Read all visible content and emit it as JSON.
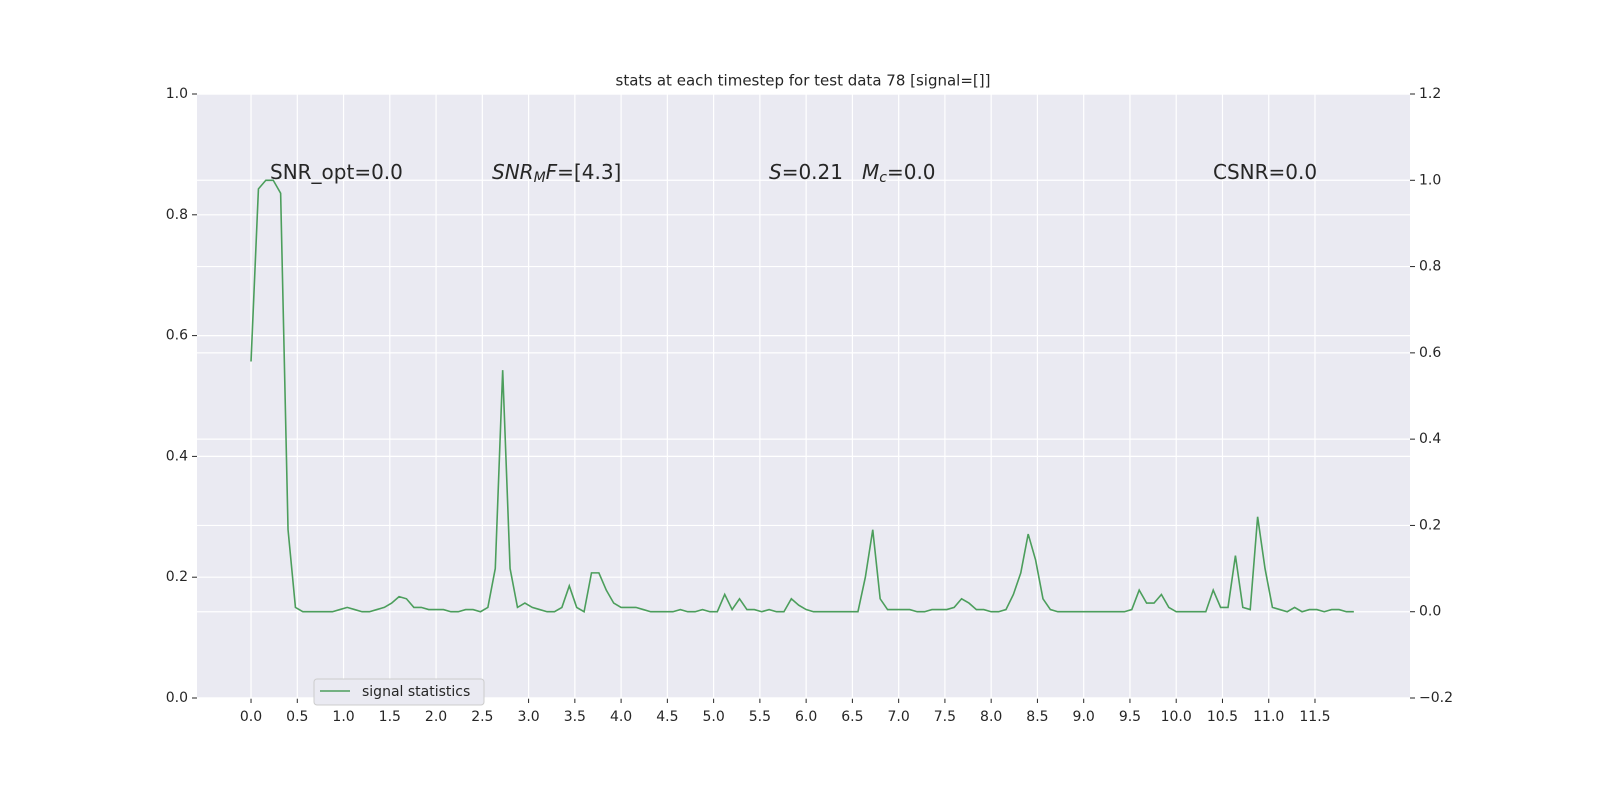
{
  "chart_data": {
    "type": "line",
    "title": "stats at each timestep for test data 78 [signal=[]]",
    "x": [
      0,
      0.08,
      0.16,
      0.24,
      0.32,
      0.4,
      0.48,
      0.56,
      0.64,
      0.72,
      0.8,
      0.88,
      0.96,
      1.04,
      1.12,
      1.2,
      1.28,
      1.36,
      1.44,
      1.52,
      1.6,
      1.68,
      1.76,
      1.84,
      1.92,
      2,
      2.08,
      2.16,
      2.24,
      2.32,
      2.4,
      2.48,
      2.56,
      2.64,
      2.72,
      2.8,
      2.88,
      2.96,
      3.04,
      3.12,
      3.2,
      3.28,
      3.36,
      3.44,
      3.52,
      3.6,
      3.68,
      3.76,
      3.84,
      3.92,
      4,
      4.08,
      4.16,
      4.24,
      4.32,
      4.4,
      4.48,
      4.56,
      4.64,
      4.72,
      4.8,
      4.88,
      4.96,
      5.04,
      5.12,
      5.2,
      5.28,
      5.36,
      5.44,
      5.52,
      5.6,
      5.68,
      5.76,
      5.84,
      5.92,
      6,
      6.08,
      6.16,
      6.24,
      6.32,
      6.4,
      6.48,
      6.56,
      6.64,
      6.72,
      6.8,
      6.88,
      6.96,
      7.04,
      7.12,
      7.2,
      7.28,
      7.36,
      7.44,
      7.52,
      7.6,
      7.68,
      7.76,
      7.84,
      7.92,
      8,
      8.08,
      8.16,
      8.24,
      8.32,
      8.4,
      8.48,
      8.56,
      8.64,
      8.72,
      8.8,
      8.88,
      8.96,
      9.04,
      9.12,
      9.2,
      9.28,
      9.36,
      9.44,
      9.52,
      9.6,
      9.68,
      9.76,
      9.84,
      9.92,
      10,
      10.08,
      10.16,
      10.24,
      10.32,
      10.4,
      10.48,
      10.56,
      10.64,
      10.72,
      10.8,
      10.88,
      10.96,
      11.04,
      11.12,
      11.2,
      11.28,
      11.36,
      11.44,
      11.52,
      11.6,
      11.68,
      11.76,
      11.84,
      11.92
    ],
    "series": [
      {
        "name": "signal statistics",
        "color": "#4c9e5c",
        "axis": "y2",
        "values": [
          0.58,
          0.98,
          1.0,
          1.0,
          0.97,
          0.19,
          0.01,
          0,
          0,
          0,
          0,
          0,
          0.005,
          0.01,
          0.005,
          0,
          0,
          0.005,
          0.01,
          0.02,
          0.035,
          0.03,
          0.01,
          0.01,
          0.005,
          0.005,
          0.005,
          0,
          0,
          0.005,
          0.005,
          0,
          0.01,
          0.1,
          0.56,
          0.1,
          0.01,
          0.02,
          0.01,
          0.005,
          0,
          0,
          0.01,
          0.06,
          0.01,
          0,
          0.09,
          0.09,
          0.05,
          0.02,
          0.01,
          0.01,
          0.01,
          0.005,
          0,
          0,
          0,
          0,
          0.005,
          0,
          0,
          0.005,
          0,
          0,
          0.04,
          0.005,
          0.03,
          0.005,
          0.005,
          0,
          0.005,
          0,
          0,
          0.03,
          0.015,
          0.005,
          0,
          0,
          0,
          0,
          0,
          0,
          0,
          0.08,
          0.19,
          0.03,
          0.005,
          0.005,
          0.005,
          0.005,
          0,
          0,
          0.005,
          0.005,
          0.005,
          0.01,
          0.03,
          0.02,
          0.005,
          0.005,
          0,
          0,
          0.005,
          0.04,
          0.09,
          0.18,
          0.12,
          0.03,
          0.005,
          0,
          0,
          0,
          0,
          0,
          0,
          0,
          0,
          0,
          0,
          0.005,
          0.05,
          0.02,
          0.02,
          0.04,
          0.01,
          0,
          0,
          0,
          0,
          0,
          0.05,
          0.01,
          0.01,
          0.13,
          0.01,
          0.005,
          0.22,
          0.1,
          0.01,
          0.005,
          0,
          0.01,
          0,
          0.005,
          0.005,
          0,
          0.005,
          0.005,
          0,
          0
        ]
      }
    ],
    "xlim": [
      -0.584,
      12.527
    ],
    "xticks": [
      {
        "value": 0,
        "label": "0.0"
      },
      {
        "value": 0.5,
        "label": "0.5"
      },
      {
        "value": 1,
        "label": "1.0"
      },
      {
        "value": 1.5,
        "label": "1.5"
      },
      {
        "value": 2,
        "label": "2.0"
      },
      {
        "value": 2.5,
        "label": "2.5"
      },
      {
        "value": 3,
        "label": "3.0"
      },
      {
        "value": 3.5,
        "label": "3.5"
      },
      {
        "value": 4,
        "label": "4.0"
      },
      {
        "value": 4.5,
        "label": "4.5"
      },
      {
        "value": 5,
        "label": "5.0"
      },
      {
        "value": 5.5,
        "label": "5.5"
      },
      {
        "value": 6,
        "label": "6.0"
      },
      {
        "value": 6.5,
        "label": "6.5"
      },
      {
        "value": 7,
        "label": "7.0"
      },
      {
        "value": 7.5,
        "label": "7.5"
      },
      {
        "value": 8,
        "label": "8.0"
      },
      {
        "value": 8.5,
        "label": "8.5"
      },
      {
        "value": 9,
        "label": "9.0"
      },
      {
        "value": 9.5,
        "label": "9.5"
      },
      {
        "value": 10,
        "label": "10.0"
      },
      {
        "value": 10.5,
        "label": "10.5"
      },
      {
        "value": 11,
        "label": "11.0"
      },
      {
        "value": 11.5,
        "label": "11.5"
      }
    ],
    "ylim": [
      0,
      1
    ],
    "yticks": [
      {
        "value": 0,
        "label": "0.0"
      },
      {
        "value": 0.2,
        "label": "0.2"
      },
      {
        "value": 0.4,
        "label": "0.4"
      },
      {
        "value": 0.6,
        "label": "0.6"
      },
      {
        "value": 0.8,
        "label": "0.8"
      },
      {
        "value": 1,
        "label": "1.0"
      }
    ],
    "y2lim": [
      -0.2,
      1.2
    ],
    "y2ticks": [
      {
        "value": -0.2,
        "label": "−0.2"
      },
      {
        "value": 0,
        "label": "0.0"
      },
      {
        "value": 0.2,
        "label": "0.2"
      },
      {
        "value": 0.4,
        "label": "0.4"
      },
      {
        "value": 0.6,
        "label": "0.6"
      },
      {
        "value": 0.8,
        "label": "0.8"
      },
      {
        "value": 1,
        "label": "1.0"
      },
      {
        "value": 1.2,
        "label": "1.2"
      }
    ],
    "grid": true,
    "legend": "lower left",
    "annotations": [
      [
        {
          "text": "SNR_opt=0.0",
          "style": "normal"
        }
      ],
      [
        {
          "text": "SNR",
          "style": "italic"
        },
        {
          "text": "M",
          "style": "sub"
        },
        {
          "text": "F",
          "style": "italic"
        },
        {
          "text": "=[4.3]",
          "style": "normal"
        }
      ],
      [
        {
          "text": "S",
          "style": "italic"
        },
        {
          "text": "=0.21",
          "style": "normal"
        }
      ],
      [
        {
          "text": "M",
          "style": "italic"
        },
        {
          "text": "c",
          "style": "sub"
        },
        {
          "text": "=0.0",
          "style": "normal"
        }
      ],
      [
        {
          "text": "CSNR=0.0",
          "style": "normal"
        }
      ]
    ]
  }
}
